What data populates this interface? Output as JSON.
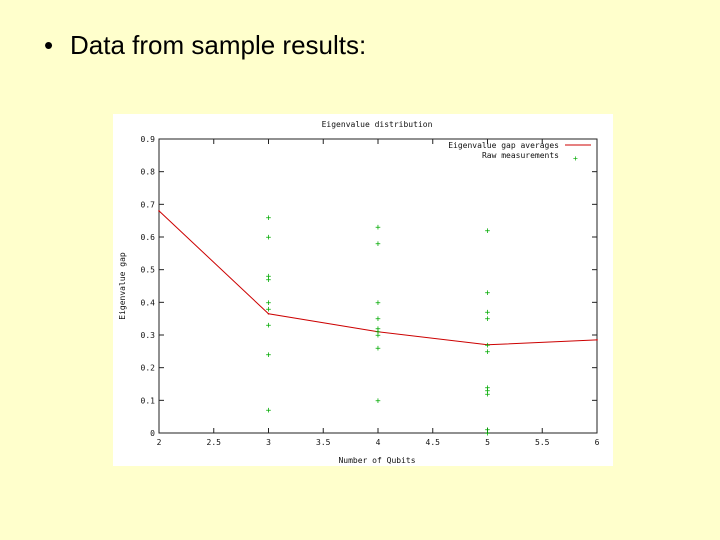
{
  "slide": {
    "bullet_symbol": "•",
    "heading": "Data from sample results:"
  },
  "chart_data": {
    "type": "line",
    "title": "Eigenvalue distribution",
    "xlabel": "Number of Qubits",
    "ylabel": "Eigenvalue gap",
    "xlim": [
      2,
      6
    ],
    "ylim": [
      0,
      0.9
    ],
    "x_ticks": [
      "2",
      "2.5",
      "3",
      "3.5",
      "4",
      "4.5",
      "5",
      "5.5",
      "6"
    ],
    "y_ticks": [
      "0",
      "0.1",
      "0.2",
      "0.3",
      "0.4",
      "0.5",
      "0.6",
      "0.7",
      "0.8",
      "0.9"
    ],
    "grid": false,
    "legend_position": "top-right",
    "colors": {
      "averages": "#cc0000",
      "raw": "#00aa00"
    },
    "series": [
      {
        "name": "Eigenvalue gap averages",
        "style": "line",
        "x": [
          2,
          3,
          4,
          5,
          6
        ],
        "y": [
          0.68,
          0.365,
          0.31,
          0.27,
          0.285
        ]
      },
      {
        "name": "Raw measurements",
        "style": "points",
        "x": [
          3,
          3,
          3,
          3,
          3,
          3,
          3,
          3,
          3,
          4,
          4,
          4,
          4,
          4,
          4,
          4,
          4,
          4,
          5,
          5,
          5,
          5,
          5,
          5,
          5,
          5,
          5,
          5,
          5
        ],
        "y": [
          0.66,
          0.6,
          0.48,
          0.47,
          0.4,
          0.38,
          0.33,
          0.24,
          0.07,
          0.63,
          0.58,
          0.4,
          0.35,
          0.32,
          0.31,
          0.3,
          0.26,
          0.1,
          0.62,
          0.43,
          0.37,
          0.35,
          0.27,
          0.25,
          0.14,
          0.13,
          0.12,
          0.01,
          0.0
        ]
      }
    ]
  }
}
